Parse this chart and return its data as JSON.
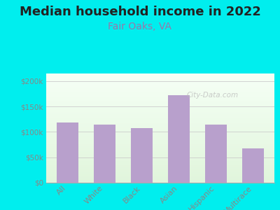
{
  "title": "Median household income in 2022",
  "subtitle": "Fair Oaks, VA",
  "categories": [
    "All",
    "White",
    "Black",
    "Asian",
    "Hispanic",
    "Multirace"
  ],
  "values": [
    118000,
    115000,
    107000,
    172000,
    114000,
    68000
  ],
  "bar_color": "#b8a0cc",
  "title_fontsize": 13,
  "subtitle_fontsize": 10,
  "subtitle_color": "#9977aa",
  "background_color": "#00eeee",
  "yticks": [
    0,
    50000,
    100000,
    150000,
    200000
  ],
  "ytick_labels": [
    "$0",
    "$50k",
    "$100k",
    "$150k",
    "$200k"
  ],
  "ylim": [
    0,
    215000
  ],
  "tick_color": "#888888",
  "watermark": "City-Data.com"
}
